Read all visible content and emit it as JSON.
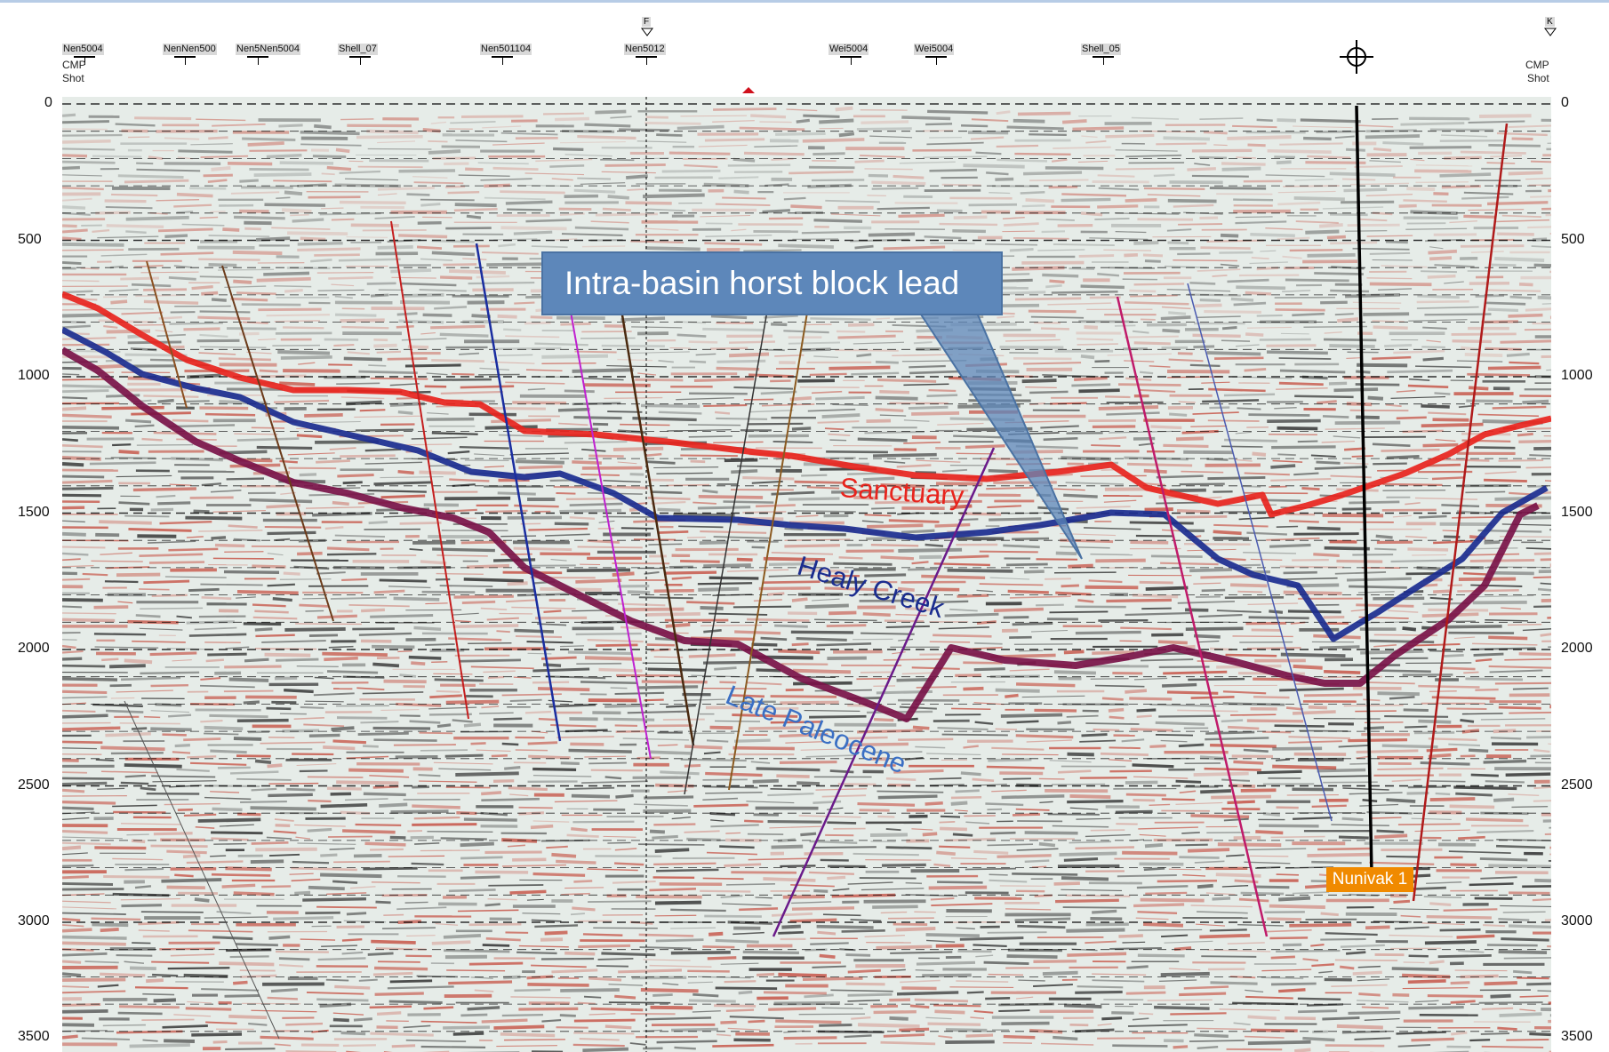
{
  "shotpoints": [
    {
      "label": "Nen5004",
      "x": 95
    },
    {
      "label": "NenNen500",
      "x": 208
    },
    {
      "label": "Nen5Nen5004",
      "x": 290
    },
    {
      "label": "Shell_07",
      "x": 405
    },
    {
      "label": "Nen501104",
      "x": 565
    },
    {
      "label": "Nen5012",
      "x": 727
    },
    {
      "label": "Wei5004",
      "x": 957
    },
    {
      "label": "Wei5004",
      "x": 1053
    },
    {
      "label": "Shell_05",
      "x": 1241
    }
  ],
  "header_left": {
    "cmp": "CMP",
    "shot": "Shot"
  },
  "header_right": {
    "cmp": "CMP",
    "shot": "Shot"
  },
  "marker_top_left": "F",
  "marker_top_right": "K",
  "axis": {
    "ticks": [
      "0",
      "500",
      "1000",
      "1500",
      "2000",
      "2500",
      "3000",
      "3500"
    ],
    "tick_values": [
      0,
      500,
      1000,
      1500,
      2000,
      2500,
      3000,
      3500
    ],
    "max": 3500
  },
  "callout": {
    "text": "Intra-basin horst block lead",
    "color": "#5d87ba"
  },
  "horizons": [
    {
      "name": "Sanctuary",
      "color": "#e8241d"
    },
    {
      "name": "Healy Creek",
      "color": "#1b2d8f"
    },
    {
      "name": "Late Paleocene",
      "color": "#7a1248"
    }
  ],
  "well": {
    "name": "Nunivak 1",
    "color": "#f08a00"
  },
  "colors": {
    "seismic_red": "#c44a3c",
    "seismic_black": "#222222",
    "seismic_bg": "#e6ece8"
  }
}
